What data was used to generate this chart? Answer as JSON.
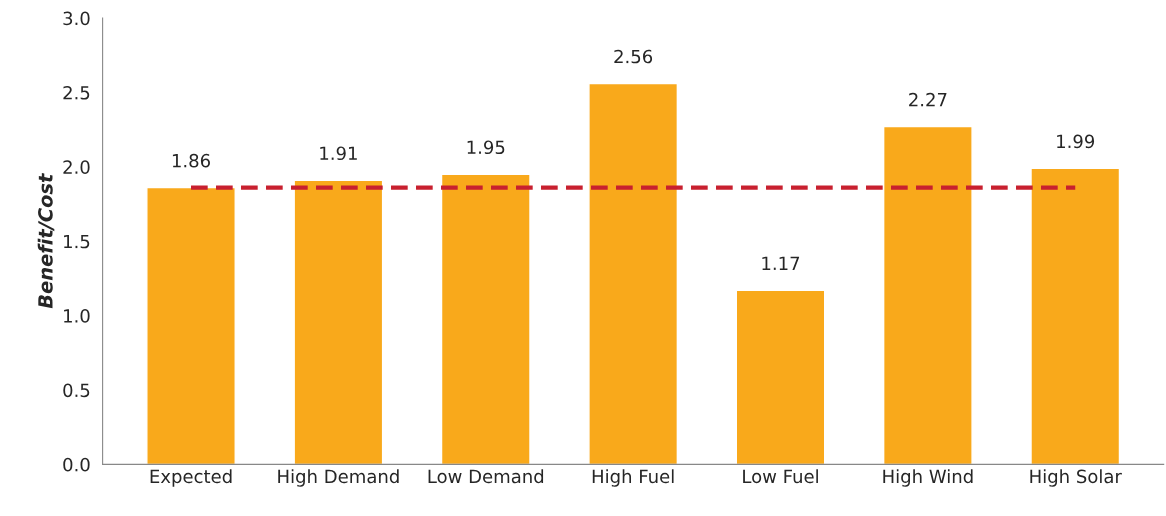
{
  "chart_data": {
    "type": "bar",
    "categories": [
      "Expected",
      "High Demand",
      "Low Demand",
      "High Fuel",
      "Low Fuel",
      "High Wind",
      "High Solar"
    ],
    "values": [
      1.86,
      1.91,
      1.95,
      2.56,
      1.17,
      2.27,
      1.99
    ],
    "color": "#f9a91b",
    "ylabel": "Benefit/Cost",
    "ylim": [
      0,
      3.0
    ],
    "yticks": [
      {
        "value": 0,
        "label": "0.0"
      },
      {
        "value": 0.5,
        "label": "0.5"
      },
      {
        "value": 1.0,
        "label": "1.0"
      },
      {
        "value": 1.5,
        "label": "1.5"
      },
      {
        "value": 2.0,
        "label": "2.0"
      },
      {
        "value": 2.5,
        "label": "2.5"
      },
      {
        "value": 3.0,
        "label": "3.0"
      }
    ],
    "data_labels": true,
    "grid": false,
    "ref_lines": [
      {
        "axis": "y",
        "value": 1.86,
        "color": "#c8202f",
        "line_style": "dashed"
      }
    ]
  }
}
